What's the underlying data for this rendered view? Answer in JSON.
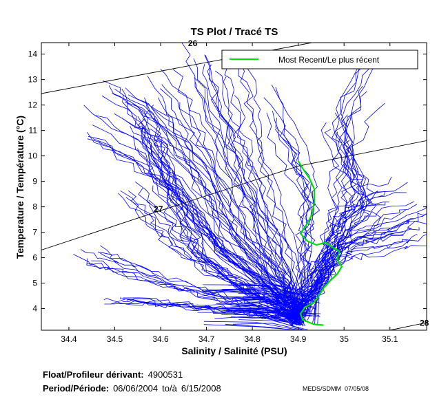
{
  "footer": {
    "float_label": "Float/Profileur dérivant:",
    "float_id": "4900531",
    "period_label": "Period/Période:",
    "start_date": "06/06/2004",
    "to_label": "to/à",
    "end_date": "6/15/2008",
    "credit": "MEDS/SDMM",
    "plot_date": "07/05/08"
  },
  "colors": {
    "profiles": "#0000ff",
    "recent": "#00dd00",
    "isopycnal": "#000000"
  },
  "chart_data": {
    "type": "line",
    "title": "TS Plot / Tracé TS",
    "xlabel": "Salinity / Salinité (PSU)",
    "ylabel": "Temperature / Température (°C)",
    "xlim": [
      34.34,
      35.18
    ],
    "ylim": [
      3.15,
      14.45
    ],
    "xticks": [
      34.4,
      34.5,
      34.6,
      34.7,
      34.8,
      34.9,
      35,
      35.1
    ],
    "xtick_labels": [
      "34.4",
      "34.5",
      "34.6",
      "34.7",
      "34.8",
      "34.9",
      "35",
      "35.1"
    ],
    "yticks": [
      4,
      5,
      6,
      7,
      8,
      9,
      10,
      11,
      12,
      13,
      14
    ],
    "ytick_labels": [
      "4",
      "5",
      "6",
      "7",
      "8",
      "9",
      "10",
      "11",
      "12",
      "13",
      "14"
    ],
    "grid": false,
    "legend": {
      "position": "top-right",
      "entries": [
        "Most Recent/Le plus récent"
      ]
    },
    "isopycnals": [
      {
        "label": "27",
        "points": [
          [
            34.34,
            6.3
          ],
          [
            34.6,
            7.85
          ],
          [
            34.9,
            9.6
          ],
          [
            35.18,
            10.6
          ]
        ],
        "label_at": [
          34.595,
          7.8
        ]
      },
      {
        "label": "26",
        "points": [
          [
            34.34,
            12.45
          ],
          [
            34.65,
            13.5
          ],
          [
            34.93,
            14.45
          ]
        ],
        "label_at": [
          34.67,
          14.32
        ]
      },
      {
        "label": "28",
        "points": [
          [
            35.1,
            3.15
          ],
          [
            35.18,
            3.45
          ]
        ],
        "label_at": [
          35.175,
          3.32
        ]
      }
    ],
    "most_recent": {
      "name": "Most Recent/Le plus récent",
      "points": [
        [
          34.9,
          9.8
        ],
        [
          34.91,
          9.5
        ],
        [
          34.925,
          9.1
        ],
        [
          34.935,
          8.7
        ],
        [
          34.935,
          8.2
        ],
        [
          34.93,
          7.7
        ],
        [
          34.92,
          7.35
        ],
        [
          34.905,
          6.95
        ],
        [
          34.92,
          6.65
        ],
        [
          34.94,
          6.5
        ],
        [
          34.96,
          6.6
        ],
        [
          34.975,
          6.4
        ],
        [
          34.99,
          6.25
        ],
        [
          34.985,
          5.95
        ],
        [
          34.995,
          5.65
        ],
        [
          34.985,
          5.35
        ],
        [
          34.97,
          5.1
        ],
        [
          34.955,
          4.8
        ],
        [
          34.945,
          4.5
        ],
        [
          34.935,
          4.25
        ],
        [
          34.915,
          4.05
        ],
        [
          34.905,
          3.8
        ],
        [
          34.91,
          3.55
        ],
        [
          34.935,
          3.38
        ],
        [
          34.955,
          3.35
        ]
      ]
    },
    "profiles": {
      "name": "Historical profiles",
      "count": 130,
      "anchors": [
        [
          [
            34.54,
            12.0
          ],
          [
            34.58,
            10.5
          ],
          [
            34.63,
            8.5
          ],
          [
            34.72,
            6.5
          ],
          [
            34.85,
            4.6
          ],
          [
            34.9,
            3.8
          ]
        ],
        [
          [
            34.5,
            12.3
          ],
          [
            34.6,
            11.0
          ],
          [
            34.68,
            9.2
          ],
          [
            34.75,
            7.0
          ],
          [
            34.85,
            5.0
          ],
          [
            34.9,
            3.7
          ]
        ],
        [
          [
            34.43,
            11.3
          ],
          [
            34.55,
            10.0
          ],
          [
            34.65,
            8.5
          ],
          [
            34.72,
            6.5
          ],
          [
            34.83,
            4.8
          ],
          [
            34.9,
            3.6
          ]
        ],
        [
          [
            34.58,
            10.8
          ],
          [
            34.62,
            9.0
          ],
          [
            34.66,
            7.5
          ],
          [
            34.7,
            6.0
          ],
          [
            34.8,
            4.6
          ],
          [
            34.9,
            3.7
          ]
        ],
        [
          [
            34.6,
            12.7
          ],
          [
            34.66,
            11.0
          ],
          [
            34.72,
            9.0
          ],
          [
            34.78,
            7.0
          ],
          [
            34.86,
            5.0
          ],
          [
            34.9,
            3.7
          ]
        ],
        [
          [
            34.68,
            13.6
          ],
          [
            34.72,
            11.5
          ],
          [
            34.76,
            9.5
          ],
          [
            34.8,
            7.8
          ],
          [
            34.86,
            5.5
          ],
          [
            34.9,
            3.8
          ]
        ],
        [
          [
            34.76,
            13.3
          ],
          [
            34.78,
            11.5
          ],
          [
            34.8,
            10.0
          ],
          [
            34.84,
            8.0
          ],
          [
            34.88,
            6.0
          ],
          [
            34.9,
            3.9
          ]
        ],
        [
          [
            34.85,
            12.0
          ],
          [
            34.9,
            10.0
          ],
          [
            34.93,
            8.5
          ],
          [
            34.92,
            7.0
          ],
          [
            34.92,
            5.5
          ],
          [
            34.9,
            3.8
          ]
        ],
        [
          [
            34.98,
            11.2
          ],
          [
            35.0,
            9.6
          ],
          [
            34.99,
            8.0
          ],
          [
            34.97,
            6.8
          ],
          [
            34.94,
            5.0
          ],
          [
            34.9,
            3.8
          ]
        ],
        [
          [
            35.06,
            13.0
          ],
          [
            35.0,
            11.0
          ],
          [
            35.03,
            9.0
          ],
          [
            35.06,
            8.0
          ],
          [
            35.0,
            6.5
          ],
          [
            34.93,
            4.5
          ]
        ],
        [
          [
            35.12,
            8.7
          ],
          [
            35.04,
            8.2
          ],
          [
            35.0,
            7.5
          ],
          [
            34.97,
            6.5
          ],
          [
            34.95,
            5.0
          ],
          [
            34.9,
            3.8
          ]
        ],
        [
          [
            35.17,
            7.8
          ],
          [
            35.1,
            7.2
          ],
          [
            35.02,
            6.8
          ],
          [
            34.97,
            6.0
          ],
          [
            34.93,
            4.8
          ],
          [
            34.9,
            3.7
          ]
        ],
        [
          [
            35.15,
            6.9
          ],
          [
            35.08,
            6.5
          ],
          [
            35.0,
            6.2
          ],
          [
            34.95,
            5.5
          ],
          [
            34.92,
            4.5
          ],
          [
            34.9,
            3.6
          ]
        ],
        [
          [
            34.45,
            6.1
          ],
          [
            34.52,
            5.6
          ],
          [
            34.62,
            5.0
          ],
          [
            34.72,
            4.5
          ],
          [
            34.82,
            4.0
          ],
          [
            34.9,
            3.6
          ]
        ],
        [
          [
            34.5,
            4.3
          ],
          [
            34.6,
            4.2
          ],
          [
            34.7,
            4.0
          ],
          [
            34.8,
            3.8
          ],
          [
            34.88,
            3.6
          ],
          [
            34.9,
            3.4
          ]
        ],
        [
          [
            34.55,
            8.8
          ],
          [
            34.6,
            7.5
          ],
          [
            34.65,
            6.5
          ],
          [
            34.72,
            5.5
          ],
          [
            34.82,
            4.5
          ],
          [
            34.9,
            3.7
          ]
        ]
      ]
    }
  }
}
